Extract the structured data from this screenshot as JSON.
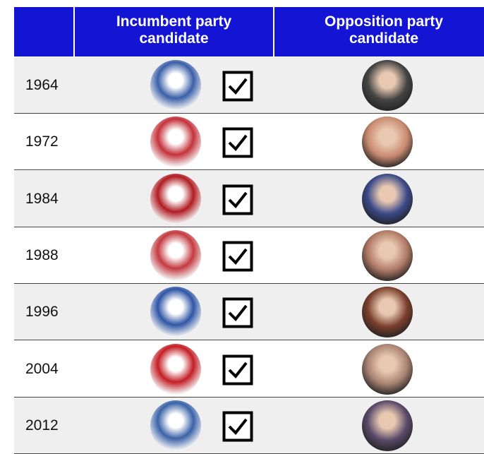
{
  "table": {
    "header": [
      "Incumbent party candidate",
      "Opposition party candidate"
    ],
    "rows": [
      "1964",
      "1972",
      "1984",
      "1988",
      "1996",
      "2004",
      "2012"
    ]
  }
}
